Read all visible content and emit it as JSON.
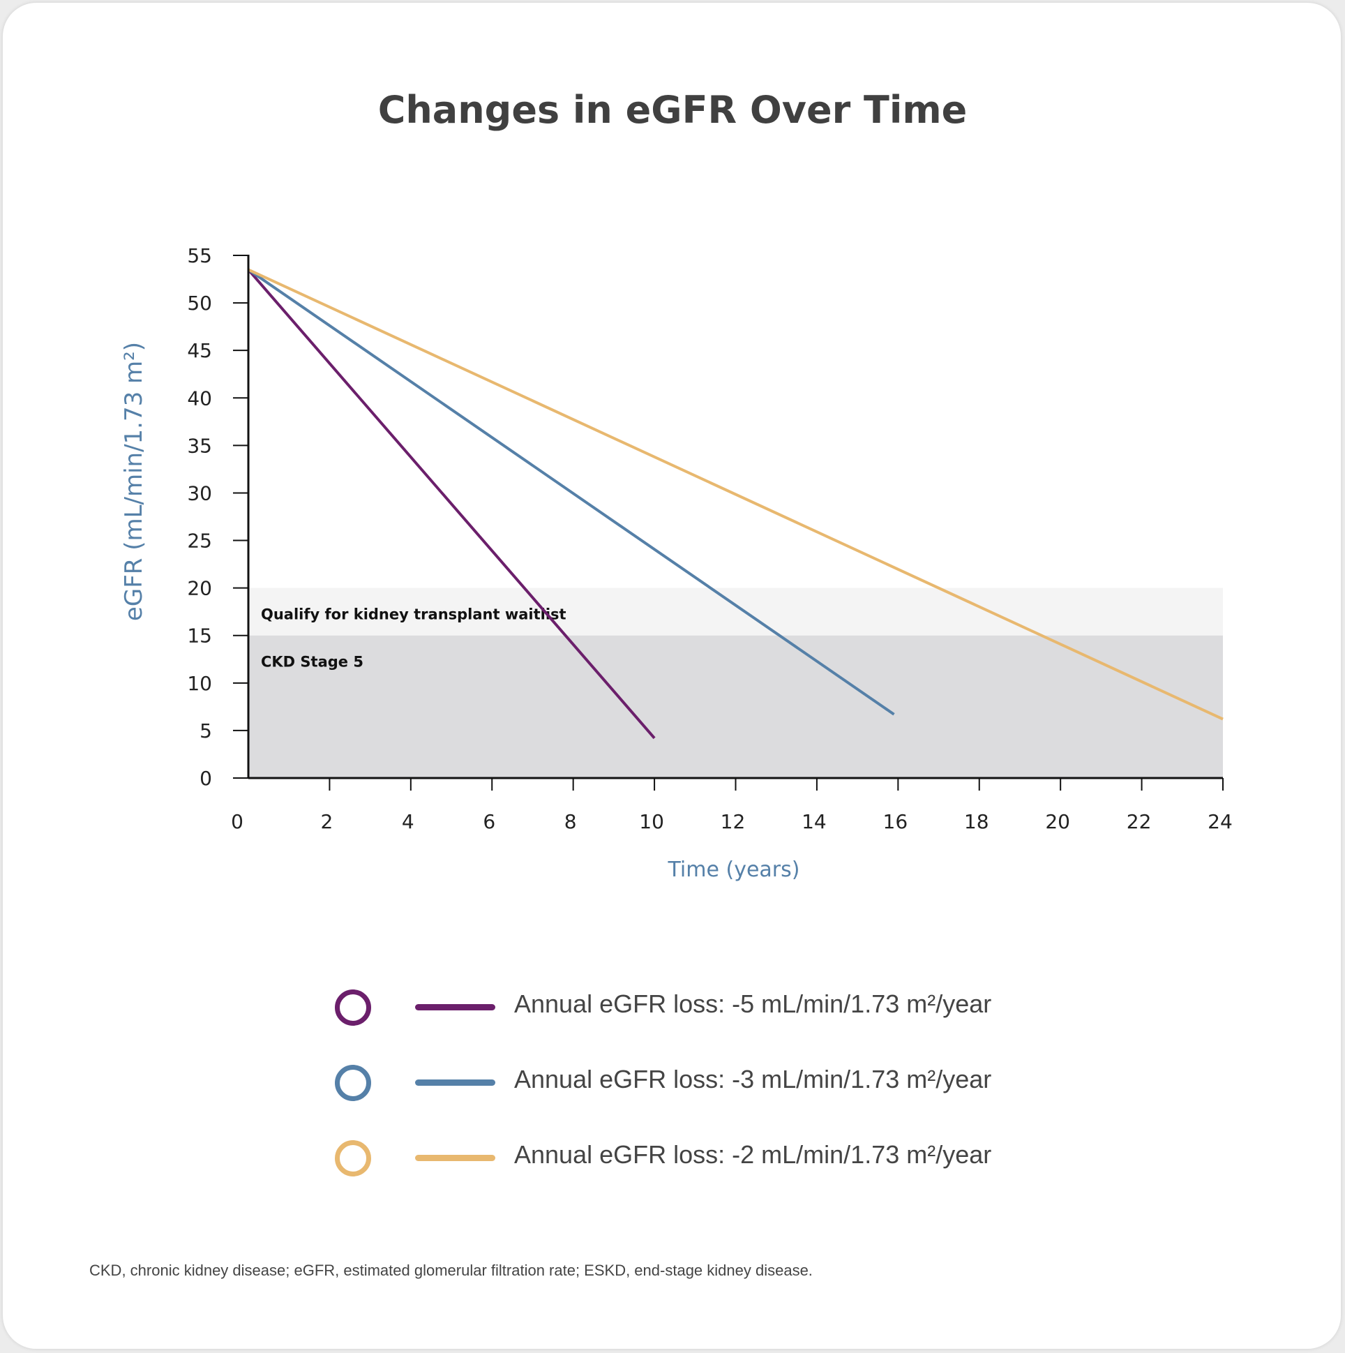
{
  "chart_data": {
    "type": "line",
    "title": "Changes in eGFR Over Time",
    "xlabel": "Time (years)",
    "ylabel": "eGFR (mL/min/1.73 m²)",
    "xlim": [
      0,
      24
    ],
    "ylim": [
      0,
      55
    ],
    "x_ticks": [
      0,
      2,
      4,
      6,
      8,
      10,
      12,
      14,
      16,
      18,
      20,
      22,
      24
    ],
    "y_ticks": [
      0,
      5,
      10,
      15,
      20,
      25,
      30,
      35,
      40,
      45,
      50,
      55
    ],
    "grid": false,
    "legend_position": "bottom",
    "bands": [
      {
        "label": "Qualify for kidney transplant waitlist",
        "y_from": 15,
        "y_to": 20,
        "color": "#f4f4f4"
      },
      {
        "label": "CKD Stage 5",
        "y_from": 0,
        "y_to": 15,
        "color": "#dcdcde"
      }
    ],
    "series": [
      {
        "name": "Annual eGFR loss: -5 mL/min/1.73 m²/year",
        "color": "#6b1f6b",
        "x": [
          0,
          10
        ],
        "y": [
          53.5,
          4.2
        ]
      },
      {
        "name": "Annual eGFR loss: -3 mL/min/1.73 m²/year",
        "color": "#5580a8",
        "x": [
          0,
          15.9
        ],
        "y": [
          53.5,
          6.7
        ]
      },
      {
        "name": "Annual eGFR loss: -2 mL/min/1.73 m²/year",
        "color": "#e8b86f",
        "x": [
          0,
          24
        ],
        "y": [
          53.5,
          6.2
        ]
      }
    ]
  },
  "footnote": "CKD, chronic kidney disease; eGFR, estimated glomerular filtration rate; ESKD, end-stage kidney disease."
}
